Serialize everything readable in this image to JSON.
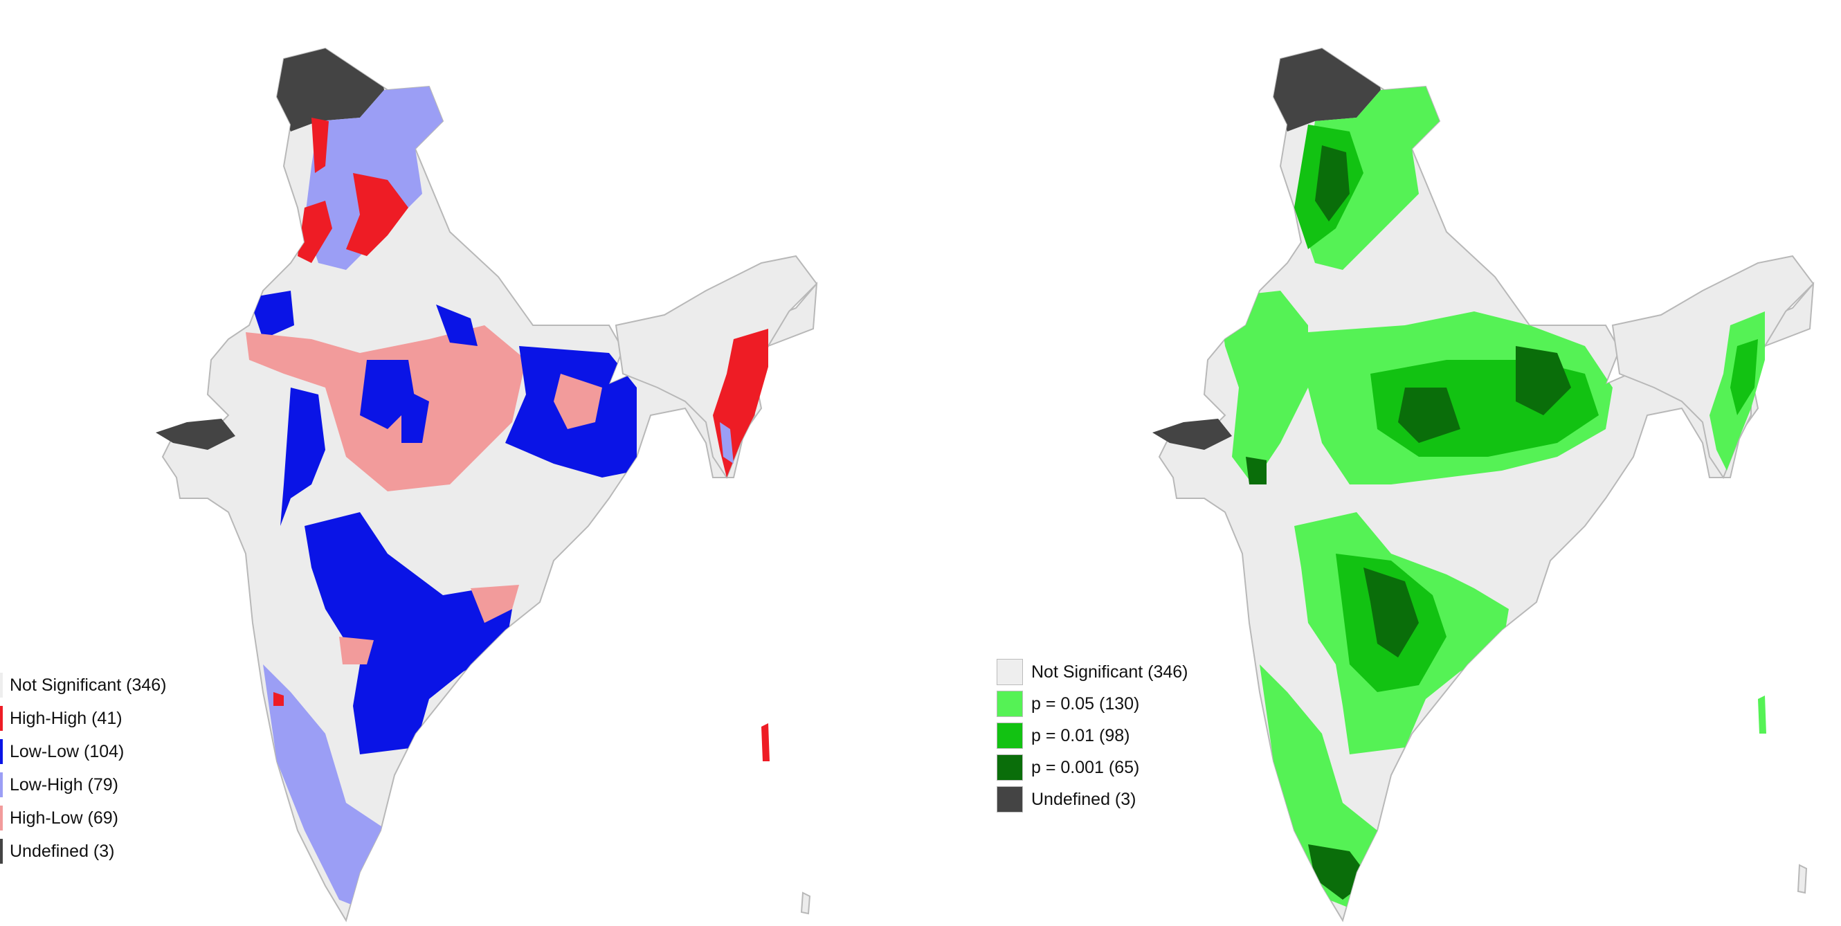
{
  "maps": [
    {
      "id": "lisa-cluster-map",
      "legend": [
        {
          "label": "Not Significant (346)",
          "color": "#eeeeee"
        },
        {
          "label": "High-High (41)",
          "color": "#ee1c25"
        },
        {
          "label": "Low-Low (104)",
          "color": "#0a14e6"
        },
        {
          "label": "Low-High (79)",
          "color": "#9b9ef5"
        },
        {
          "label": "High-Low (69)",
          "color": "#f29b9b"
        },
        {
          "label": "Undefined (3)",
          "color": "#444444"
        }
      ]
    },
    {
      "id": "lisa-significance-map",
      "legend": [
        {
          "label": "Not Significant (346)",
          "color": "#eeeeee"
        },
        {
          "label": "p = 0.05 (130)",
          "color": "#55f255"
        },
        {
          "label": "p = 0.01 (98)",
          "color": "#12c212"
        },
        {
          "label": "p = 0.001 (65)",
          "color": "#0a6e0a"
        },
        {
          "label": "Undefined (3)",
          "color": "#444444"
        }
      ]
    }
  ],
  "colors": {
    "base": "#ececec",
    "border": "#b8b8b8"
  }
}
